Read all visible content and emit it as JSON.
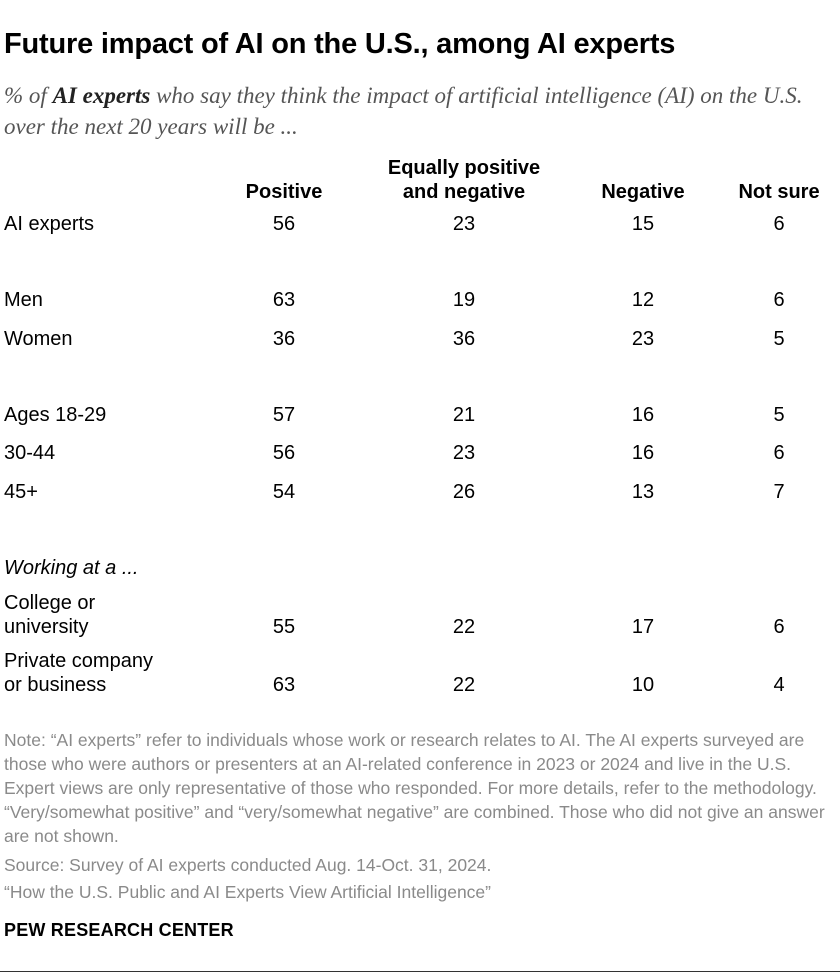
{
  "chart_data": {
    "type": "table",
    "title": "Future impact of AI on the U.S., among AI experts",
    "subtitle_prefix": "% of ",
    "subtitle_bold": "AI experts",
    "subtitle_rest": " who say they think the impact of artificial intelligence (AI) on the U.S. over the next 20 years will be ...",
    "columns": [
      {
        "label": "Positive"
      },
      {
        "label": "Equally positive and negative",
        "line1": "Equally positive",
        "line2": "and negative"
      },
      {
        "label": "Negative"
      },
      {
        "label": "Not sure"
      }
    ],
    "group_label": "Working at a ...",
    "rows": [
      {
        "label": "AI experts",
        "values": [
          56,
          23,
          15,
          6
        ]
      },
      {
        "label": "Men",
        "values": [
          63,
          19,
          12,
          6
        ]
      },
      {
        "label": "Women",
        "values": [
          36,
          36,
          23,
          5
        ]
      },
      {
        "label": "Ages 18-29",
        "values": [
          57,
          21,
          16,
          5
        ]
      },
      {
        "label": "30-44",
        "values": [
          56,
          23,
          16,
          6
        ]
      },
      {
        "label": "45+",
        "values": [
          54,
          26,
          13,
          7
        ]
      },
      {
        "label": "College or university",
        "line1": "College or",
        "line2": "university",
        "values": [
          55,
          22,
          17,
          6
        ]
      },
      {
        "label": "Private company or business",
        "line1": "Private company",
        "line2": "or business",
        "values": [
          63,
          22,
          10,
          4
        ]
      }
    ]
  },
  "footer": {
    "note": "Note: “AI experts” refer to individuals whose work or research relates to AI. The AI experts surveyed are those who were authors or presenters at an AI-related conference in 2023 or 2024 and live in the U.S. Expert views are only representative of those who responded. For more details, refer to the methodology. “Very/somewhat positive” and “very/somewhat negative” are combined. Those who did not give an answer are not shown.",
    "source": "Source: Survey of AI experts conducted Aug. 14-Oct. 31, 2024.",
    "report": "“How the U.S. Public and AI Experts View Artificial Intelligence”",
    "brand": "PEW RESEARCH CENTER"
  }
}
